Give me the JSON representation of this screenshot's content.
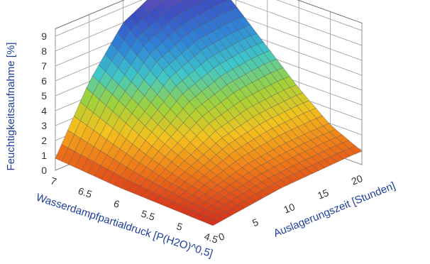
{
  "chart_data": {
    "type": "surface3d",
    "title": "",
    "zlabel": "Feuchtigkeitsaufnahme [%]",
    "xlabel": "Wasserdampfpartialdruck [P(H2O)^0,5]",
    "ylabel": "Auslagerungszeit [Stunden]",
    "z_ticks": [
      "0",
      "1",
      "2",
      "3",
      "4",
      "5",
      "6",
      "7",
      "8",
      "9"
    ],
    "x_ticks": [
      "7",
      "6.5",
      "6",
      "5.5",
      "5",
      "4.5"
    ],
    "y_ticks": [
      "0",
      "5",
      "10",
      "15",
      "20"
    ],
    "zlim": [
      0,
      9.5
    ],
    "xlim": [
      4.5,
      7
    ],
    "ylim": [
      0,
      22
    ],
    "grid": true,
    "surface": {
      "x": [
        7.0,
        6.5,
        6.0,
        5.5,
        5.0,
        4.5
      ],
      "y": [
        0,
        5,
        10,
        15,
        20,
        22
      ],
      "z": [
        [
          0.8,
          5.0,
          8.0,
          9.2,
          9.5,
          9.5
        ],
        [
          0.6,
          3.8,
          6.2,
          7.3,
          7.6,
          7.6
        ],
        [
          0.4,
          2.6,
          4.4,
          5.3,
          5.6,
          5.6
        ],
        [
          0.3,
          1.6,
          2.8,
          3.4,
          3.6,
          3.6
        ],
        [
          0.2,
          0.9,
          1.5,
          1.8,
          1.9,
          1.9
        ],
        [
          0.1,
          0.4,
          0.7,
          0.8,
          0.9,
          0.9
        ]
      ]
    },
    "colormap": [
      "#d42a1c",
      "#f07a18",
      "#f3c21e",
      "#9fd23a",
      "#3fc8c8",
      "#2f86d8",
      "#3a4fc4",
      "#7b4bb5"
    ]
  }
}
